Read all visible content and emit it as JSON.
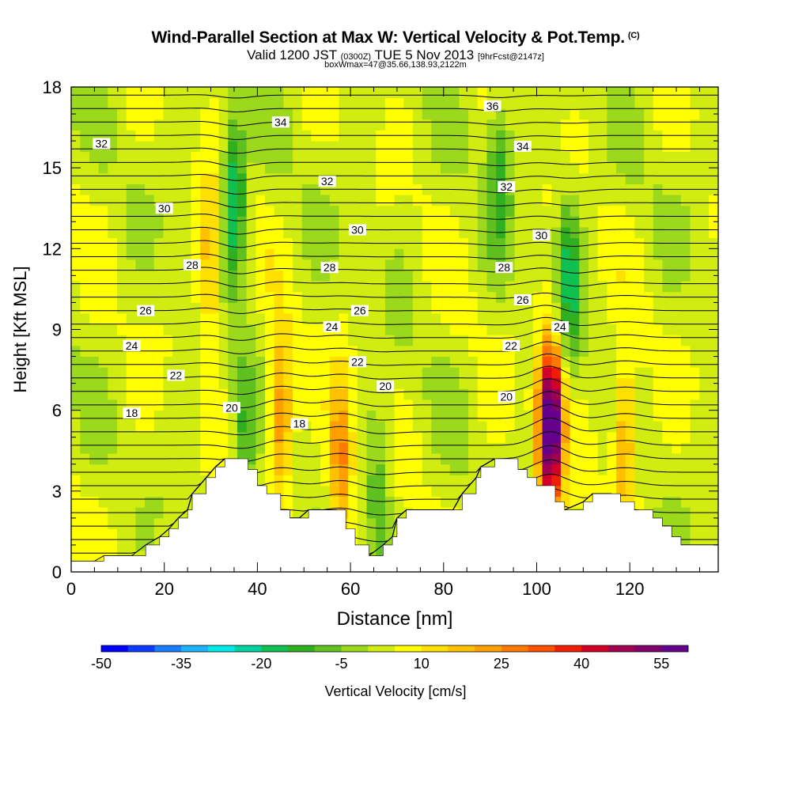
{
  "header": {
    "title": "Wind-Parallel Section at Max W: Vertical Velocity & Pot.Temp.",
    "copyright": "(C)",
    "subtitle_valid": "Valid 1200 JST",
    "subtitle_utc": "(0300Z)",
    "subtitle_date": "TUE 5 Nov 2013",
    "subtitle_fcst": "[9hrFcst@2147z]",
    "subtitle_box": "boxWmax=47@35.66,138.93,2122m"
  },
  "colors": {
    "palette": [
      "#0000ff",
      "#0a3cff",
      "#1a7cff",
      "#1cb4ff",
      "#00e8e8",
      "#00d2a0",
      "#10c050",
      "#30b020",
      "#60c020",
      "#9cd81c",
      "#d0ec10",
      "#ffff00",
      "#ffe000",
      "#ffc000",
      "#ffa000",
      "#ff7800",
      "#ff5000",
      "#f01e00",
      "#d20028",
      "#a00050",
      "#80006a",
      "#64008c"
    ],
    "terrain": "#ffffff",
    "contour": "#000000"
  },
  "chart_data": {
    "type": "heatmap",
    "xlabel": "Distance [nm]",
    "ylabel": "Height [Kft MSL]",
    "xlim": [
      0,
      139
    ],
    "ylim": [
      0,
      18
    ],
    "x_ticks": [
      0,
      20,
      40,
      60,
      80,
      100,
      120
    ],
    "y_ticks": [
      0,
      3,
      6,
      9,
      12,
      15,
      18
    ],
    "field": "Vertical velocity (shaded, cm/s)",
    "contour_field": "Potential temperature (contours)",
    "colorbar": {
      "label": "Vertical Velocity [cm/s]",
      "min": -50,
      "max": 60,
      "step": 5,
      "tick_labels": [
        "-50",
        "-35",
        "-20",
        "-5",
        "10",
        "25",
        "40",
        "55"
      ]
    },
    "features": [
      {
        "x": 103,
        "y": 5.5,
        "w": 65,
        "sign": "updraft"
      },
      {
        "x": 45,
        "y": 5.8,
        "w": 25,
        "sign": "updraft"
      },
      {
        "x": 58,
        "y": 4.2,
        "w": 25,
        "sign": "updraft"
      },
      {
        "x": 30,
        "y": 11.5,
        "w": 18,
        "sign": "updraft"
      },
      {
        "x": 35,
        "y": 14.0,
        "w": -25,
        "sign": "downdraft"
      },
      {
        "x": 37,
        "y": 5.0,
        "w": -15,
        "sign": "downdraft"
      },
      {
        "x": 66,
        "y": 3.0,
        "w": -12,
        "sign": "downdraft"
      },
      {
        "x": 107,
        "y": 11.0,
        "w": -20,
        "sign": "downdraft"
      },
      {
        "x": 92,
        "y": 15.0,
        "w": -15,
        "sign": "downdraft"
      },
      {
        "x": 119,
        "y": 5.0,
        "w": 22,
        "sign": "updraft"
      }
    ],
    "terrain_kft": [
      {
        "x": 0,
        "h": 0.4
      },
      {
        "x": 5,
        "h": 0.4
      },
      {
        "x": 7,
        "h": 0.6
      },
      {
        "x": 13,
        "h": 0.6
      },
      {
        "x": 16,
        "h": 1.0
      },
      {
        "x": 19,
        "h": 1.3
      },
      {
        "x": 21,
        "h": 1.6
      },
      {
        "x": 23,
        "h": 2.0
      },
      {
        "x": 25,
        "h": 2.3
      },
      {
        "x": 26,
        "h": 2.9
      },
      {
        "x": 29,
        "h": 3.5
      },
      {
        "x": 31,
        "h": 3.9
      },
      {
        "x": 33,
        "h": 4.2
      },
      {
        "x": 36,
        "h": 4.2
      },
      {
        "x": 38,
        "h": 3.8
      },
      {
        "x": 40,
        "h": 3.2
      },
      {
        "x": 42,
        "h": 2.9
      },
      {
        "x": 45,
        "h": 2.3
      },
      {
        "x": 47,
        "h": 2.0
      },
      {
        "x": 49,
        "h": 2.0
      },
      {
        "x": 51,
        "h": 2.3
      },
      {
        "x": 57,
        "h": 2.3
      },
      {
        "x": 59,
        "h": 1.6
      },
      {
        "x": 61,
        "h": 1.0
      },
      {
        "x": 64,
        "h": 0.6
      },
      {
        "x": 67,
        "h": 1.0
      },
      {
        "x": 69,
        "h": 1.3
      },
      {
        "x": 70,
        "h": 2.0
      },
      {
        "x": 72,
        "h": 2.3
      },
      {
        "x": 82,
        "h": 2.3
      },
      {
        "x": 84,
        "h": 2.9
      },
      {
        "x": 87,
        "h": 3.5
      },
      {
        "x": 88,
        "h": 3.9
      },
      {
        "x": 91,
        "h": 4.2
      },
      {
        "x": 94,
        "h": 4.2
      },
      {
        "x": 96,
        "h": 3.8
      },
      {
        "x": 98,
        "h": 3.5
      },
      {
        "x": 100,
        "h": 3.2
      },
      {
        "x": 102,
        "h": 3.2
      },
      {
        "x": 104,
        "h": 2.6
      },
      {
        "x": 106,
        "h": 2.3
      },
      {
        "x": 110,
        "h": 2.6
      },
      {
        "x": 112,
        "h": 2.9
      },
      {
        "x": 116,
        "h": 2.9
      },
      {
        "x": 118,
        "h": 2.6
      },
      {
        "x": 121,
        "h": 2.3
      },
      {
        "x": 125,
        "h": 2.0
      },
      {
        "x": 127,
        "h": 1.7
      },
      {
        "x": 129,
        "h": 1.3
      },
      {
        "x": 131,
        "h": 1.0
      },
      {
        "x": 135,
        "h": 1.0
      },
      {
        "x": 139,
        "h": 1.0
      }
    ],
    "contour_labels": [
      {
        "text": "32",
        "x": 6.5,
        "y": 15.9
      },
      {
        "text": "34",
        "x": 45.0,
        "y": 16.7
      },
      {
        "text": "36",
        "x": 90.5,
        "y": 17.3
      },
      {
        "text": "34",
        "x": 97.0,
        "y": 15.8
      },
      {
        "text": "32",
        "x": 55.0,
        "y": 14.5
      },
      {
        "text": "32",
        "x": 93.5,
        "y": 14.3
      },
      {
        "text": "30",
        "x": 20.0,
        "y": 13.5
      },
      {
        "text": "30",
        "x": 61.5,
        "y": 12.7
      },
      {
        "text": "30",
        "x": 101.0,
        "y": 12.5
      },
      {
        "text": "28",
        "x": 26.0,
        "y": 11.4
      },
      {
        "text": "28",
        "x": 55.5,
        "y": 11.3
      },
      {
        "text": "28",
        "x": 93.0,
        "y": 11.3
      },
      {
        "text": "26",
        "x": 16.0,
        "y": 9.7
      },
      {
        "text": "26",
        "x": 62.0,
        "y": 9.7
      },
      {
        "text": "26",
        "x": 97.0,
        "y": 10.1
      },
      {
        "text": "24",
        "x": 13.0,
        "y": 8.4
      },
      {
        "text": "24",
        "x": 56.0,
        "y": 9.1
      },
      {
        "text": "24",
        "x": 105.0,
        "y": 9.1
      },
      {
        "text": "22",
        "x": 22.5,
        "y": 7.3
      },
      {
        "text": "22",
        "x": 61.5,
        "y": 7.8
      },
      {
        "text": "22",
        "x": 94.5,
        "y": 8.4
      },
      {
        "text": "20",
        "x": 34.5,
        "y": 6.1
      },
      {
        "text": "20",
        "x": 67.5,
        "y": 6.9
      },
      {
        "text": "20",
        "x": 93.5,
        "y": 6.5
      },
      {
        "text": "18",
        "x": 13.0,
        "y": 5.9
      },
      {
        "text": "18",
        "x": 49.0,
        "y": 5.5
      }
    ]
  }
}
